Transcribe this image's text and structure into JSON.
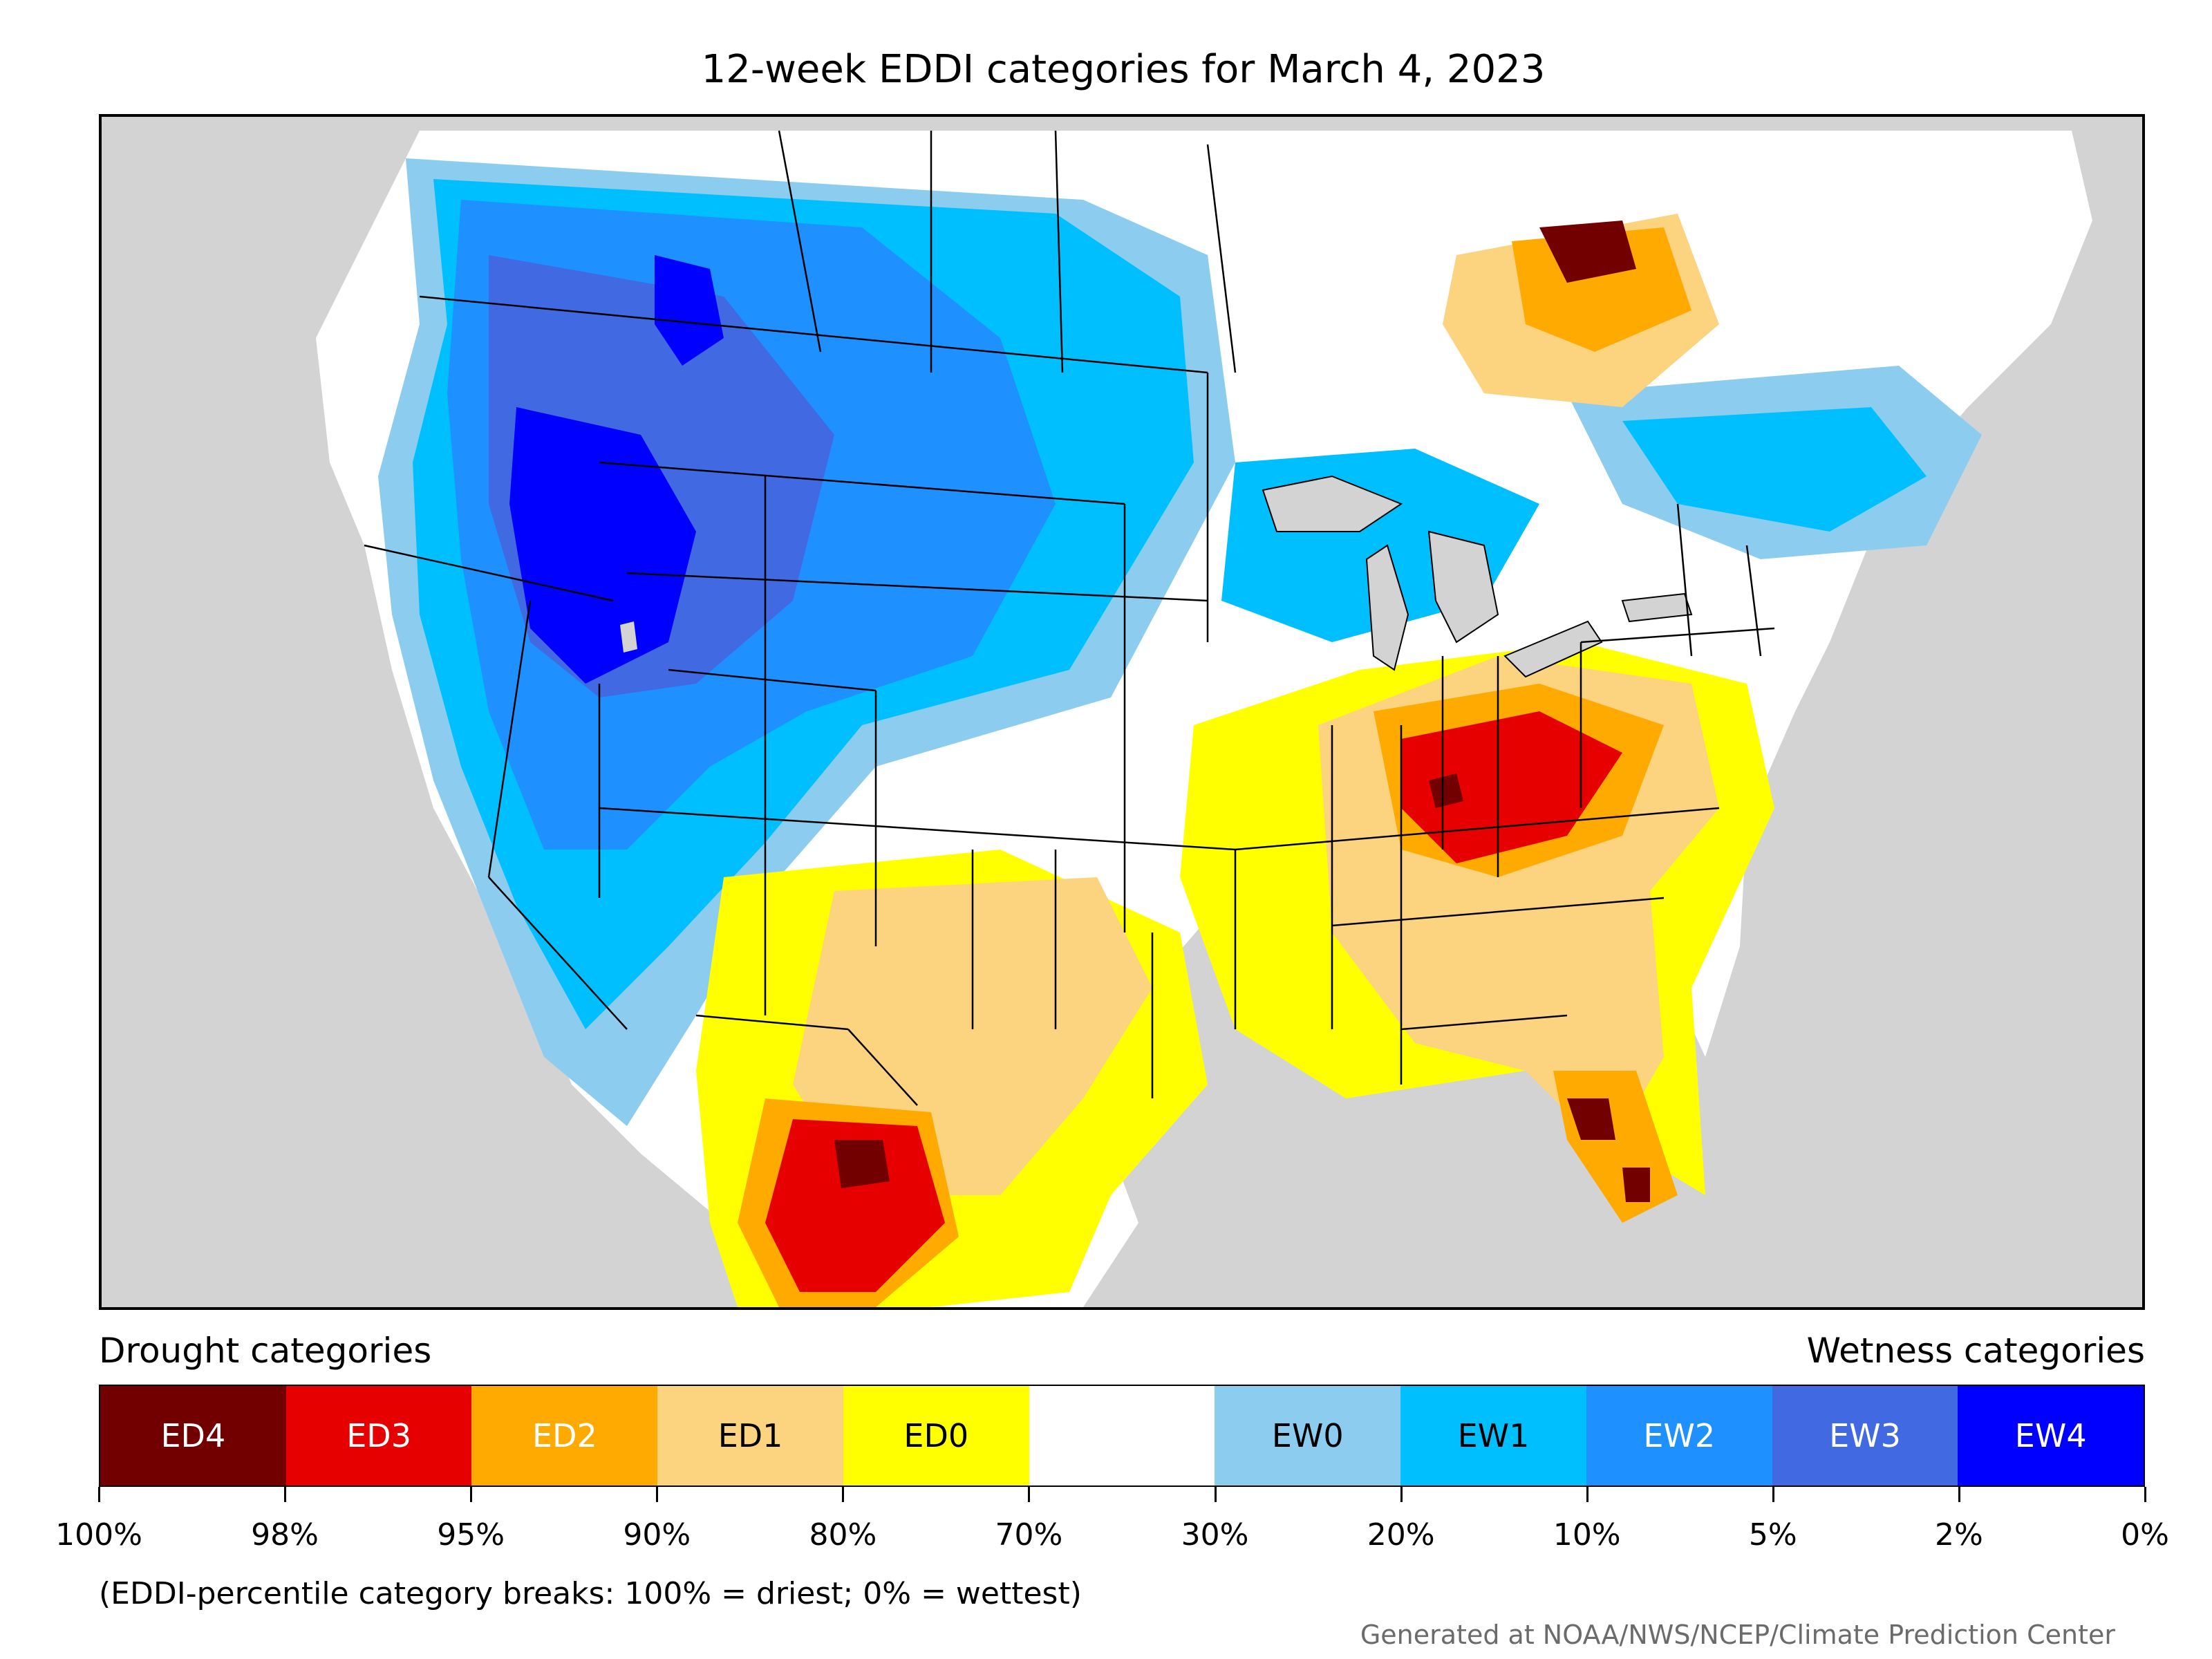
{
  "title": "12-week EDDI categories for March 4, 2023",
  "legend": {
    "drought_heading": "Drought categories",
    "wetness_heading": "Wetness categories",
    "categories": [
      {
        "label": "ED4",
        "color": "#730000",
        "text_color": "#ffffff"
      },
      {
        "label": "ED3",
        "color": "#e60000",
        "text_color": "#ffffff"
      },
      {
        "label": "ED2",
        "color": "#ffaa00",
        "text_color": "#ffffff"
      },
      {
        "label": "ED1",
        "color": "#fcd37f",
        "text_color": "#000000"
      },
      {
        "label": "ED0",
        "color": "#ffff00",
        "text_color": "#000000"
      },
      {
        "label": "",
        "color": "#ffffff",
        "text_color": "#000000"
      },
      {
        "label": "EW0",
        "color": "#8ccdef",
        "text_color": "#000000"
      },
      {
        "label": "EW1",
        "color": "#00bfff",
        "text_color": "#000000"
      },
      {
        "label": "EW2",
        "color": "#1e90ff",
        "text_color": "#ffffff"
      },
      {
        "label": "EW3",
        "color": "#4169e1",
        "text_color": "#ffffff"
      },
      {
        "label": "EW4",
        "color": "#0000ff",
        "text_color": "#ffffff"
      }
    ],
    "tick_labels": [
      "100%",
      "98%",
      "95%",
      "90%",
      "80%",
      "70%",
      "30%",
      "20%",
      "10%",
      "5%",
      "2%",
      "0%"
    ]
  },
  "note": "(EDDI-percentile category breaks: 100% = driest; 0% = wettest)",
  "credit": "Generated at NOAA/NWS/NCEP/Climate Prediction Center",
  "map_colors": {
    "outside": "#d3d3d3",
    "land": "#ffffff",
    "water": "#d3d3d3"
  }
}
